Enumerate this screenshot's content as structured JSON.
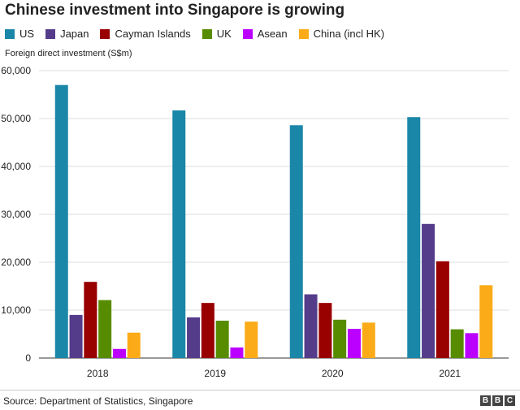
{
  "title": "Chinese investment into Singapore is growing",
  "source": "Source: Department of Statistics, Singapore",
  "logo": {
    "letters": [
      "B",
      "B",
      "C"
    ]
  },
  "chart_data": {
    "type": "bar",
    "title": "Chinese investment into Singapore is growing",
    "ylabel": "Foreign direct investment (S$m)",
    "xlabel": "",
    "categories": [
      "2018",
      "2019",
      "2020",
      "2021"
    ],
    "ylim": [
      0,
      60000
    ],
    "yticks": [
      0,
      10000,
      20000,
      30000,
      40000,
      50000,
      60000
    ],
    "ytick_labels": [
      "0",
      "10,000",
      "20,000",
      "30,000",
      "40,000",
      "50,000",
      "60,000"
    ],
    "grid": true,
    "legend_position": "top-left",
    "series": [
      {
        "name": "US",
        "color": "#1a87a8",
        "values": [
          57000,
          51700,
          48600,
          50300
        ]
      },
      {
        "name": "Japan",
        "color": "#553c8b",
        "values": [
          9000,
          8500,
          13300,
          28000
        ]
      },
      {
        "name": "Cayman Islands",
        "color": "#990000",
        "values": [
          15900,
          11500,
          11500,
          20200
        ]
      },
      {
        "name": "UK",
        "color": "#588c00",
        "values": [
          12100,
          7800,
          8000,
          6000
        ]
      },
      {
        "name": "Asean",
        "color": "#bb00ff",
        "values": [
          1900,
          2200,
          6100,
          5200
        ]
      },
      {
        "name": "China (incl HK)",
        "color": "#fbab18",
        "values": [
          5300,
          7600,
          7400,
          15200
        ]
      }
    ]
  }
}
